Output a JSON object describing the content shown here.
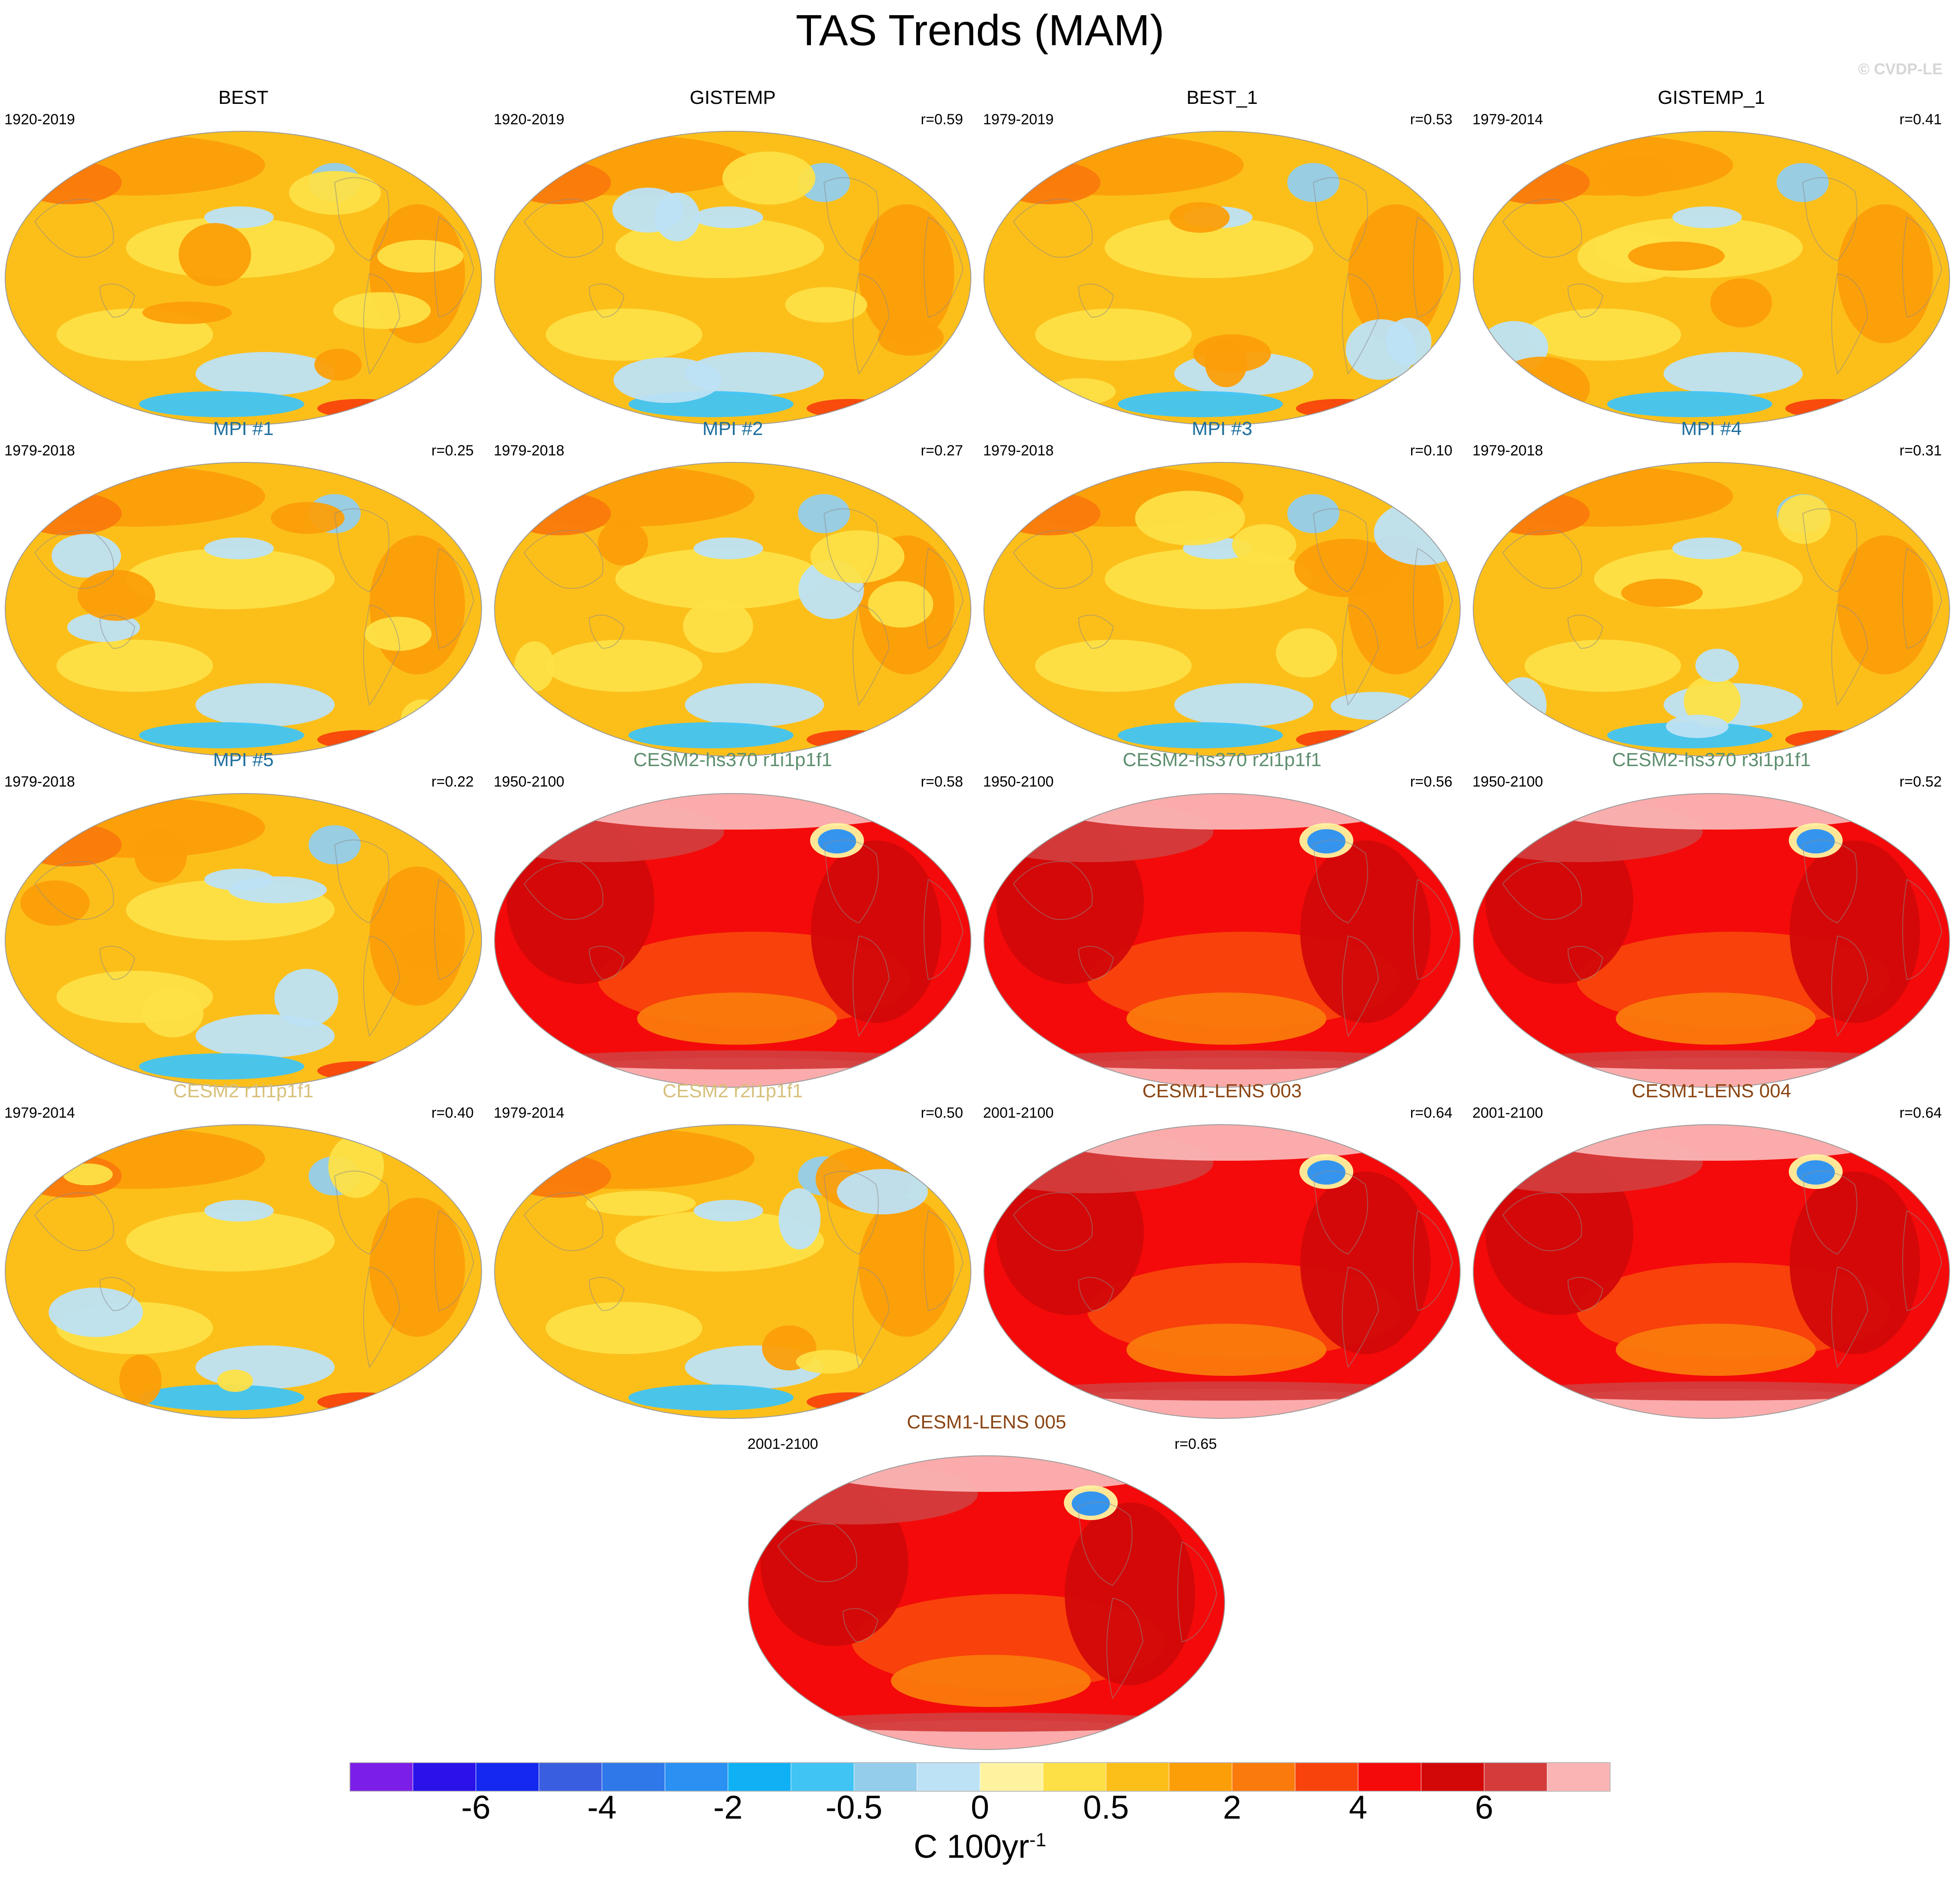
{
  "title": "TAS Trends (MAM)",
  "watermark": "© CVDP-LE",
  "panels": [
    {
      "title": "BEST",
      "title_color": "#000000",
      "period": "1920-2019",
      "corr": "",
      "palette": "warm"
    },
    {
      "title": "GISTEMP",
      "title_color": "#000000",
      "period": "1920-2019",
      "corr": "r=0.59",
      "palette": "warm"
    },
    {
      "title": "BEST_1",
      "title_color": "#000000",
      "period": "1979-2019",
      "corr": "r=0.53",
      "palette": "warm"
    },
    {
      "title": "GISTEMP_1",
      "title_color": "#000000",
      "period": "1979-2014",
      "corr": "r=0.41",
      "palette": "warm"
    },
    {
      "title": "MPI #1",
      "title_color": "#1f6f9c",
      "period": "1979-2018",
      "corr": "r=0.25",
      "palette": "warm"
    },
    {
      "title": "MPI #2",
      "title_color": "#1f6f9c",
      "period": "1979-2018",
      "corr": "r=0.27",
      "palette": "warm"
    },
    {
      "title": "MPI #3",
      "title_color": "#1f6f9c",
      "period": "1979-2018",
      "corr": "r=0.10",
      "palette": "warm"
    },
    {
      "title": "MPI #4",
      "title_color": "#1f6f9c",
      "period": "1979-2018",
      "corr": "r=0.31",
      "palette": "warm"
    },
    {
      "title": "MPI #5",
      "title_color": "#1f6f9c",
      "period": "1979-2018",
      "corr": "r=0.22",
      "palette": "warm"
    },
    {
      "title": "CESM2-hs370 r1i1p1f1",
      "title_color": "#5e8f6f",
      "period": "1950-2100",
      "corr": "r=0.58",
      "palette": "hot"
    },
    {
      "title": "CESM2-hs370 r2i1p1f1",
      "title_color": "#5e8f6f",
      "period": "1950-2100",
      "corr": "r=0.56",
      "palette": "hot"
    },
    {
      "title": "CESM2-hs370 r3i1p1f1",
      "title_color": "#5e8f6f",
      "period": "1950-2100",
      "corr": "r=0.52",
      "palette": "hot"
    },
    {
      "title": "CESM2 r1i1p1f1",
      "title_color": "#d7c07a",
      "period": "1979-2014",
      "corr": "r=0.40",
      "palette": "warm"
    },
    {
      "title": "CESM2 r2i1p1f1",
      "title_color": "#d7c07a",
      "period": "1979-2014",
      "corr": "r=0.50",
      "palette": "warm"
    },
    {
      "title": "CESM1-LENS 003",
      "title_color": "#8b4513",
      "period": "2001-2100",
      "corr": "r=0.64",
      "palette": "hot"
    },
    {
      "title": "CESM1-LENS 004",
      "title_color": "#8b4513",
      "period": "2001-2100",
      "corr": "r=0.64",
      "palette": "hot"
    },
    {
      "title": "CESM1-LENS 005",
      "title_color": "#8b4513",
      "period": "2001-2100",
      "corr": "r=0.65",
      "palette": "hot"
    }
  ],
  "colorbar": {
    "colors": [
      "#7b1fe8",
      "#2a12e8",
      "#1428f0",
      "#3a5ee0",
      "#2f78ea",
      "#2a90f2",
      "#10b0f4",
      "#40c4f4",
      "#94cdec",
      "#bde2f6",
      "#fff3a0",
      "#fde046",
      "#fcbf1a",
      "#fc9e08",
      "#fa7a0c",
      "#f8440c",
      "#f40a0a",
      "#d20808",
      "#d43c3c",
      "#fbb4b4"
    ],
    "tick_labels": [
      "-6",
      "-4",
      "-2",
      "-0.5",
      "0",
      "0.5",
      "2",
      "4",
      "6"
    ],
    "tick_boundaries": [
      2,
      4,
      6,
      8,
      10,
      12,
      14,
      16,
      18
    ],
    "units": "C 100yr",
    "units_exponent": "-1"
  }
}
